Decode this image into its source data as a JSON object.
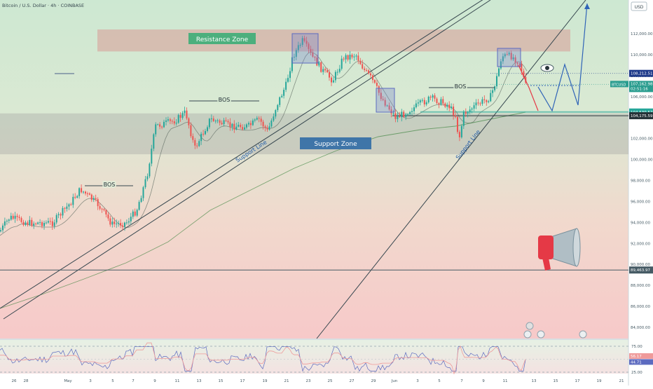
{
  "header": {
    "symbol_title": "Bitcoin / U.S. Dollar · 4h · COINBASE",
    "currency": "USD"
  },
  "chart_data": {
    "type": "candlestick",
    "title": "Bitcoin / U.S. Dollar · 4h · COINBASE",
    "ylim": [
      83000,
      116000
    ],
    "y_ticks": [
      84000,
      86000,
      88000,
      90000,
      92000,
      94000,
      96000,
      98000,
      100000,
      102000,
      104000,
      106000,
      108000,
      110000,
      112000
    ],
    "y_tick_labels": [
      "84,000.00",
      "86,000.00",
      "88,000.00",
      "90,000.00",
      "92,000.00",
      "94,000.00",
      "96,000.00",
      "98,000.00",
      "100,000.00",
      "102,000.00",
      "104,000.00",
      "106,000.00",
      "108,000.00",
      "110,000.00",
      "112,000.00"
    ],
    "x_tick_labels": [
      "26",
      "28",
      "May",
      "3",
      "5",
      "7",
      "9",
      "11",
      "13",
      "15",
      "17",
      "19",
      "21",
      "23",
      "25",
      "27",
      "29",
      "Jun",
      "3",
      "5",
      "7",
      "9",
      "11",
      "13",
      "15",
      "17",
      "19",
      "21"
    ],
    "series": [
      {
        "name": "BTCUSD",
        "ohlc_series": true
      }
    ],
    "key_prices": [
      {
        "label": "108,212.51",
        "value": 108212.51,
        "color": "#1e3a8a"
      },
      {
        "label": "BTCUSD",
        "value": 107162.98,
        "color": "#2a9d8f",
        "sub": "107,162.98",
        "sub2": "02:51:16"
      },
      {
        "label": "104,530.57",
        "value": 104530.57,
        "color": "#26a69a"
      },
      {
        "label": "104,175.59",
        "value": 104175.59,
        "color": "#263238"
      },
      {
        "label": "89,463.97",
        "value": 89463.97,
        "color": "#455a64"
      }
    ],
    "zones": [
      {
        "name": "resistance",
        "from": 110300,
        "to": 112400,
        "label": "Resistance Zone"
      },
      {
        "name": "support",
        "from": 100500,
        "to": 104400,
        "label": "Support Zone"
      }
    ],
    "annotations": [
      "BOS",
      "BOS",
      "BOS",
      "Support Line",
      "Support Line"
    ],
    "oscillator": {
      "ylim": [
        25,
        75
      ],
      "ticks": [
        "75.00",
        "25.00"
      ],
      "labels": [
        {
          "text": "56.17",
          "value": 56.17,
          "color": "#ef9a9a"
        },
        {
          "text": "44.71",
          "value": 44.71,
          "color": "#5c6bc0"
        }
      ]
    }
  }
}
